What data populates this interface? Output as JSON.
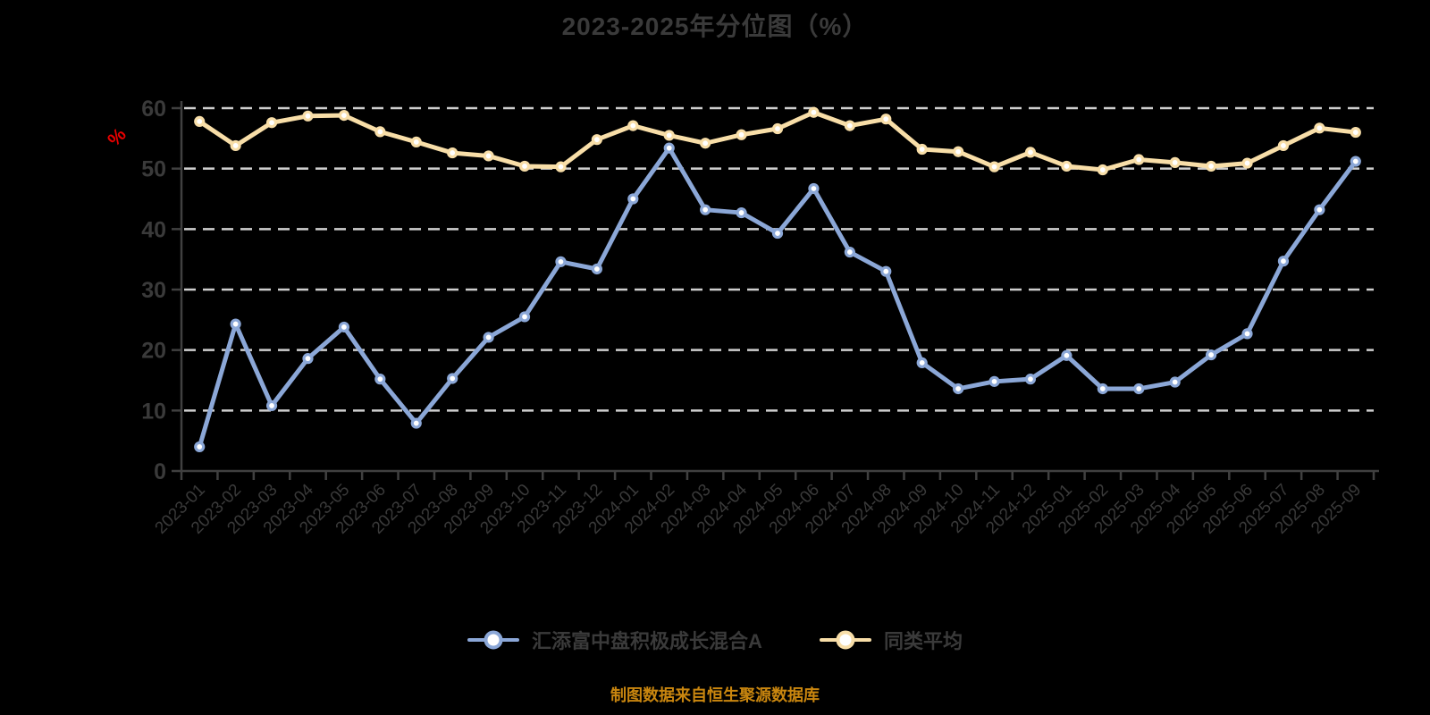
{
  "title": "2023-2025年分位图（%）",
  "caption": "制图数据来自恒生聚源数据库",
  "colors": {
    "background": "#000000",
    "fund": "#8ba7d7",
    "average": "#f8dea8",
    "marker_fill": "#ffffff",
    "grid": "#cfcfcf",
    "axis": "#404040",
    "tick_text": "#3a3a3a",
    "title_text": "#3a3a3a",
    "caption_text": "#c9860f",
    "unit_label": "#e60000"
  },
  "legend": [
    {
      "label": "汇添富中盘积极成长混合A",
      "color_key": "fund"
    },
    {
      "label": "同类平均",
      "color_key": "average"
    }
  ],
  "chart_data": {
    "type": "line",
    "title": "2023-2025年分位图（%）",
    "xlabel": "",
    "ylabel": "%",
    "ylim": [
      0,
      60
    ],
    "yticks": [
      0,
      10,
      20,
      30,
      40,
      50,
      60
    ],
    "grid": "horizontal-dashed",
    "legend_position": "bottom",
    "categories": [
      "2023-01",
      "2023-02",
      "2023-03",
      "2023-04",
      "2023-05",
      "2023-06",
      "2023-07",
      "2023-08",
      "2023-09",
      "2023-10",
      "2023-11",
      "2023-12",
      "2024-01",
      "2024-02",
      "2024-03",
      "2024-04",
      "2024-05",
      "2024-06",
      "2024-07",
      "2024-08",
      "2024-09",
      "2024-10",
      "2024-11",
      "2024-12",
      "2025-01",
      "2025-02",
      "2025-03",
      "2025-04",
      "2025-05",
      "2025-06",
      "2025-07",
      "2025-08",
      "2025-09"
    ],
    "series": [
      {
        "name": "汇添富中盘积极成长混合A",
        "color_key": "fund",
        "values": [
          4.0,
          24.3,
          10.8,
          18.6,
          23.8,
          15.2,
          7.9,
          15.3,
          22.1,
          25.5,
          34.6,
          33.4,
          45.0,
          53.4,
          43.2,
          42.7,
          39.3,
          46.7,
          36.2,
          33.0,
          17.9,
          13.6,
          14.8,
          15.2,
          19.1,
          13.6,
          13.6,
          14.7,
          19.2,
          22.7,
          34.7,
          43.2,
          51.2
        ]
      },
      {
        "name": "同类平均",
        "color_key": "average",
        "values": [
          57.8,
          53.8,
          57.6,
          58.7,
          58.8,
          56.1,
          54.4,
          52.6,
          52.1,
          50.4,
          50.3,
          54.8,
          57.1,
          55.5,
          54.2,
          55.6,
          56.6,
          59.3,
          57.1,
          58.2,
          53.2,
          52.8,
          50.3,
          52.7,
          50.4,
          49.8,
          51.5,
          51.0,
          50.4,
          50.9,
          53.8,
          56.7,
          56.0
        ]
      }
    ]
  }
}
